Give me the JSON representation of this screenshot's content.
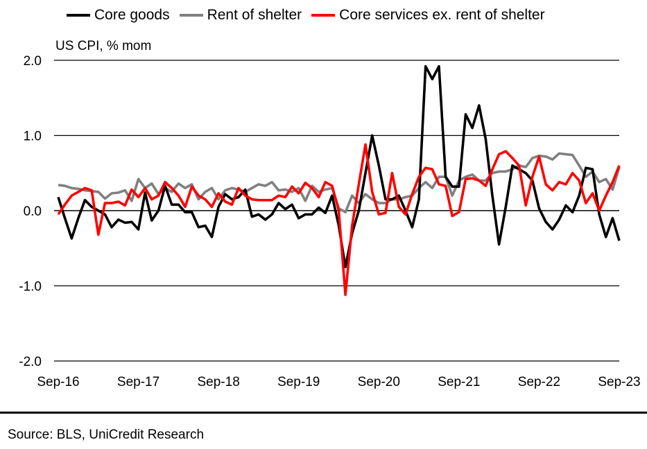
{
  "chart_data": {
    "type": "line",
    "ylabel": "US CPI, % mom",
    "ylim": [
      -2.0,
      2.0
    ],
    "yticks": [
      "2.0",
      "1.0",
      "0.0",
      "-1.0",
      "-2.0"
    ],
    "ytick_values": [
      2,
      1,
      0,
      -1,
      -2
    ],
    "x_frequency": "monthly",
    "x_range": [
      "Sep-16",
      "Sep-23"
    ],
    "xticks": [
      "Sep-16",
      "Sep-17",
      "Sep-18",
      "Sep-19",
      "Sep-20",
      "Sep-21",
      "Sep-22",
      "Sep-23"
    ],
    "grid": "horizontal",
    "legend_position": "top",
    "series": [
      {
        "name": "Core goods",
        "color": "#000000",
        "values": [
          0.18,
          -0.1,
          -0.37,
          -0.1,
          0.14,
          0.05,
          0.0,
          -0.05,
          -0.22,
          -0.12,
          -0.16,
          -0.15,
          -0.25,
          0.24,
          -0.13,
          0.0,
          0.33,
          0.08,
          0.08,
          -0.02,
          -0.02,
          -0.22,
          -0.2,
          -0.35,
          0.05,
          0.22,
          0.15,
          0.18,
          0.28,
          -0.08,
          -0.05,
          -0.12,
          -0.05,
          0.1,
          0.02,
          0.08,
          -0.1,
          -0.05,
          -0.05,
          0.04,
          -0.03,
          0.2,
          -0.2,
          -0.75,
          -0.3,
          0.0,
          0.5,
          1.0,
          0.6,
          0.15,
          0.15,
          0.2,
          0.0,
          -0.22,
          0.15,
          1.92,
          1.75,
          1.92,
          0.45,
          0.32,
          0.32,
          1.28,
          1.1,
          1.4,
          0.95,
          0.2,
          -0.45,
          0.05,
          0.6,
          0.55,
          0.5,
          0.4,
          0.03,
          -0.15,
          -0.25,
          -0.12,
          0.07,
          -0.02,
          0.2,
          0.57,
          0.55,
          -0.05,
          -0.35,
          -0.1,
          -0.4
        ]
      },
      {
        "name": "Rent of shelter",
        "color": "#808080",
        "values": [
          0.34,
          0.33,
          0.3,
          0.29,
          0.27,
          0.26,
          0.25,
          0.16,
          0.23,
          0.24,
          0.27,
          0.13,
          0.42,
          0.3,
          0.36,
          0.22,
          0.3,
          0.25,
          0.36,
          0.3,
          0.35,
          0.15,
          0.25,
          0.3,
          0.15,
          0.27,
          0.3,
          0.28,
          0.25,
          0.3,
          0.35,
          0.33,
          0.38,
          0.27,
          0.28,
          0.25,
          0.3,
          0.13,
          0.33,
          0.25,
          0.28,
          0.3,
          0.03,
          -0.02,
          0.2,
          0.1,
          0.22,
          0.15,
          0.1,
          0.1,
          0.15,
          0.15,
          0.18,
          0.2,
          0.3,
          0.38,
          0.3,
          0.45,
          0.45,
          0.2,
          0.4,
          0.45,
          0.48,
          0.4,
          0.4,
          0.5,
          0.52,
          0.52,
          0.55,
          0.6,
          0.58,
          0.7,
          0.73,
          0.72,
          0.68,
          0.76,
          0.75,
          0.74,
          0.6,
          0.45,
          0.52,
          0.38,
          0.42,
          0.28,
          0.58
        ]
      },
      {
        "name": "Core services ex. rent of shelter",
        "color": "#ff0000",
        "values": [
          -0.05,
          0.08,
          0.2,
          0.25,
          0.3,
          0.27,
          -0.32,
          0.1,
          0.1,
          0.12,
          0.07,
          0.28,
          0.18,
          0.3,
          0.15,
          0.2,
          0.38,
          0.3,
          0.2,
          0.05,
          0.32,
          0.2,
          0.15,
          0.05,
          0.23,
          0.12,
          0.08,
          0.3,
          0.2,
          0.15,
          0.14,
          0.14,
          0.14,
          0.2,
          0.18,
          0.32,
          0.23,
          0.37,
          0.3,
          0.18,
          0.38,
          0.33,
          0.0,
          -1.12,
          -0.2,
          0.35,
          0.88,
          0.25,
          -0.05,
          -0.03,
          0.5,
          0.05,
          -0.05,
          0.22,
          0.45,
          0.57,
          0.55,
          0.35,
          0.33,
          -0.07,
          -0.02,
          0.42,
          0.43,
          0.4,
          0.33,
          0.55,
          0.75,
          0.79,
          0.7,
          0.6,
          0.07,
          0.45,
          0.72,
          0.35,
          0.27,
          0.38,
          0.35,
          0.5,
          0.4,
          0.1,
          0.23,
          0.0,
          0.2,
          0.38,
          0.6
        ]
      }
    ]
  },
  "source": "Source: BLS, UniCredit Research"
}
